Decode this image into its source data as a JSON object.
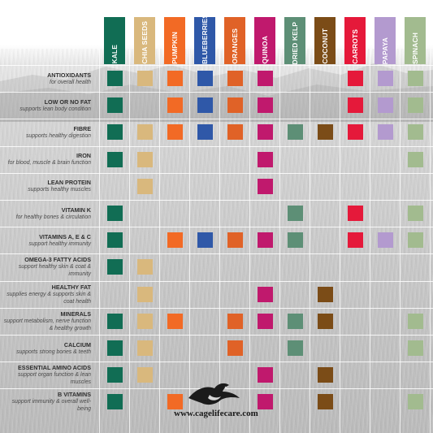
{
  "columns": [
    {
      "key": "kale",
      "label": "KALE",
      "color": "#116d54"
    },
    {
      "key": "chia",
      "label": "CHIA SEEDS",
      "color": "#d9b87d"
    },
    {
      "key": "pumpkin",
      "label": "PUMPKIN",
      "color": "#f26a25"
    },
    {
      "key": "blueberries",
      "label": "BLUEBERRIES",
      "color": "#2f58a8"
    },
    {
      "key": "oranges",
      "label": "ORANGES",
      "color": "#e06227"
    },
    {
      "key": "quinoa",
      "label": "QUINOA",
      "color": "#c0196d"
    },
    {
      "key": "kelp",
      "label": "DRIED KELP",
      "color": "#5d8f76"
    },
    {
      "key": "coconut",
      "label": "COCONUT",
      "color": "#7b4c17"
    },
    {
      "key": "carrots",
      "label": "CARROTS",
      "color": "#e5193a"
    },
    {
      "key": "papaya",
      "label": "PAPAYA",
      "color": "#b39acf"
    },
    {
      "key": "spinach",
      "label": "SPINACH",
      "color": "#a2bb8f"
    }
  ],
  "rows": [
    {
      "name": "ANTIOXIDANTS",
      "desc": "for overall health",
      "marks": [
        1,
        1,
        1,
        1,
        1,
        1,
        0,
        0,
        1,
        1,
        1
      ]
    },
    {
      "name": "LOW OR NO FAT",
      "desc": "supports lean body condition",
      "marks": [
        1,
        0,
        1,
        1,
        1,
        1,
        0,
        0,
        1,
        1,
        1
      ]
    },
    {
      "name": "FIBRE",
      "desc": "supports healthy digestion",
      "marks": [
        1,
        1,
        1,
        1,
        1,
        1,
        1,
        1,
        1,
        1,
        1
      ]
    },
    {
      "name": "IRON",
      "desc": "for blood, muscle & brain function",
      "marks": [
        1,
        1,
        0,
        0,
        0,
        1,
        0,
        0,
        0,
        0,
        1
      ]
    },
    {
      "name": "LEAN PROTEIN",
      "desc": "supports healthy muscles",
      "marks": [
        0,
        1,
        0,
        0,
        0,
        1,
        0,
        0,
        0,
        0,
        0
      ]
    },
    {
      "name": "VITAMIN K",
      "desc": "for healthy bones & circulation",
      "marks": [
        1,
        0,
        0,
        0,
        0,
        0,
        1,
        0,
        1,
        0,
        1
      ]
    },
    {
      "name": "VITAMINS A, E & C",
      "desc": "support healthy immunity",
      "marks": [
        1,
        0,
        1,
        1,
        1,
        1,
        1,
        0,
        1,
        1,
        1
      ]
    },
    {
      "name": "OMEGA-3 FATTY ACIDS",
      "desc": "support healthy skin & coat & immunity",
      "marks": [
        1,
        1,
        0,
        0,
        0,
        0,
        0,
        0,
        0,
        0,
        0
      ]
    },
    {
      "name": "HEALTHY FAT",
      "desc": "supplies energy & supports skin & coat health",
      "marks": [
        0,
        1,
        0,
        0,
        0,
        1,
        0,
        1,
        0,
        0,
        0
      ]
    },
    {
      "name": "MINERALS",
      "desc": "support metabolism, nerve function & healthy growth",
      "marks": [
        1,
        1,
        1,
        0,
        1,
        1,
        1,
        1,
        0,
        0,
        1
      ]
    },
    {
      "name": "CALCIUM",
      "desc": "supports strong bones & teeth",
      "marks": [
        1,
        1,
        0,
        0,
        1,
        0,
        1,
        0,
        0,
        0,
        1
      ]
    },
    {
      "name": "ESSENTIAL AMINO ACIDS",
      "desc": "support organ function & lean muscles",
      "marks": [
        1,
        1,
        0,
        0,
        0,
        1,
        0,
        1,
        0,
        0,
        0
      ]
    },
    {
      "name": "B VITAMINS",
      "desc": "support immunity & overall well-being",
      "marks": [
        1,
        0,
        1,
        0,
        0,
        1,
        0,
        1,
        0,
        0,
        1
      ]
    }
  ],
  "footer": {
    "website": "www.cagelifecare.com",
    "logo_icon": "bird-logo-icon"
  }
}
